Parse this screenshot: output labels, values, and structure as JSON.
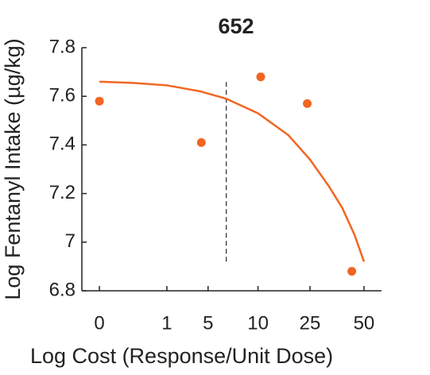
{
  "chart_data": {
    "type": "scatter",
    "title": "652",
    "xlabel": "Log Cost (Response/Unit Dose)",
    "ylabel": "Log Fentanyl Intake (µg/kg)",
    "xlim": [
      -0.26,
      4.18
    ],
    "ylim": [
      6.8,
      7.8
    ],
    "xticks": [
      {
        "value": 0,
        "label": "0"
      },
      {
        "value": 1,
        "label": "1"
      },
      {
        "value": 1.61,
        "label": "5"
      },
      {
        "value": 2.35,
        "label": "10"
      },
      {
        "value": 3.12,
        "label": "25"
      },
      {
        "value": 3.92,
        "label": "50"
      }
    ],
    "yticks": [
      {
        "value": 6.8,
        "label": "6.8"
      },
      7,
      {
        "value": 7.2,
        "label": "7.2"
      },
      {
        "value": 7.4,
        "label": "7.4"
      },
      {
        "value": 7.6,
        "label": "7.6"
      },
      {
        "value": 7.8,
        "label": "7.8"
      }
    ],
    "series": [
      {
        "type": "scatter",
        "color": "#f26522",
        "x": [
          0,
          1.51,
          2.39,
          3.08,
          3.74
        ],
        "values": [
          7.58,
          7.41,
          7.68,
          7.57,
          6.88
        ]
      },
      {
        "type": "line",
        "color": "#f26522",
        "x": [
          0,
          0.5,
          1.0,
          1.5,
          1.88,
          2.35,
          2.8,
          3.12,
          3.4,
          3.6,
          3.78,
          3.92
        ],
        "values": [
          7.66,
          7.655,
          7.645,
          7.62,
          7.59,
          7.53,
          7.44,
          7.34,
          7.23,
          7.14,
          7.03,
          6.92
        ]
      }
    ],
    "vline": {
      "x": 1.88,
      "range": [
        6.92,
        7.67
      ]
    }
  }
}
